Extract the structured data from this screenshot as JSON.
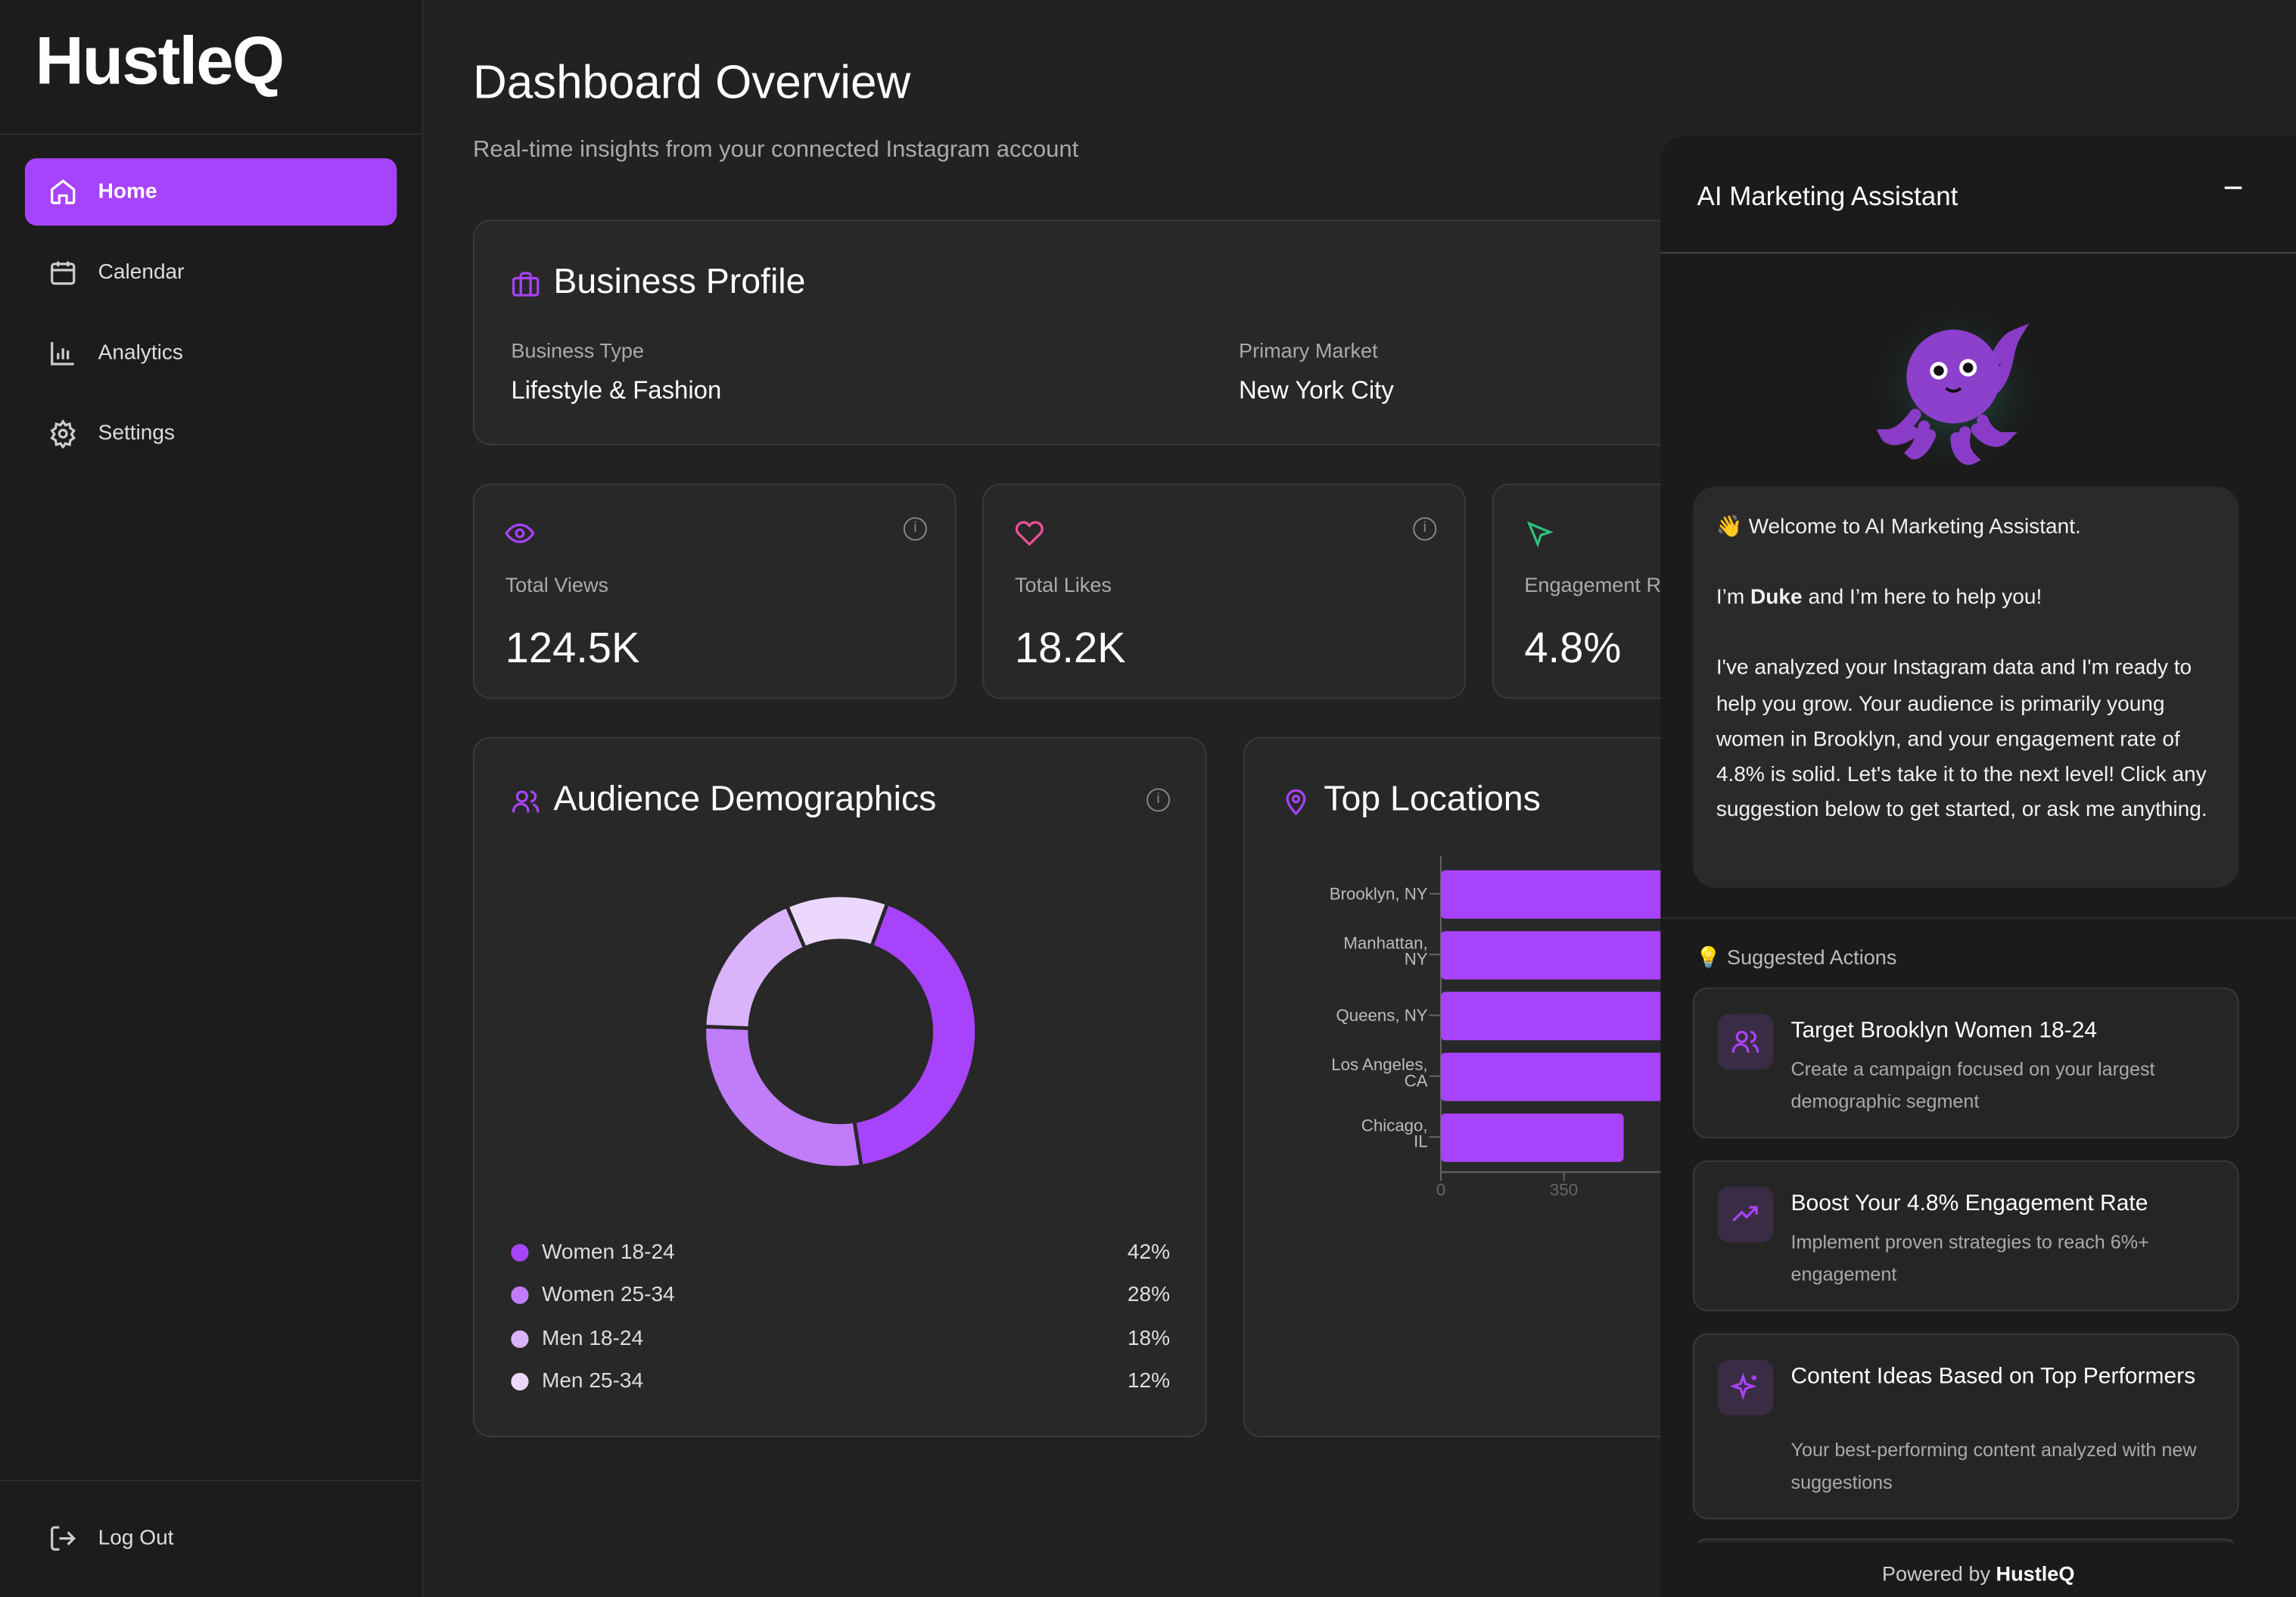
{
  "sidebar": {
    "logo": "HustleQ",
    "items": [
      {
        "label": "Home",
        "icon": "home-icon",
        "active": true
      },
      {
        "label": "Calendar",
        "icon": "calendar-icon"
      },
      {
        "label": "Analytics",
        "icon": "bar-chart-icon"
      },
      {
        "label": "Settings",
        "icon": "gear-icon"
      }
    ],
    "logout": "Log Out"
  },
  "header": {
    "title": "Dashboard Overview",
    "subtitle": "Real-time insights from your connected Instagram account"
  },
  "profile": {
    "title": "Business Profile",
    "business_type_label": "Business Type",
    "business_type": "Lifestyle & Fashion",
    "market_label": "Primary Market",
    "market": "New York City"
  },
  "stats": [
    {
      "label": "Total Views",
      "value": "124.5K",
      "icon": "eye-icon",
      "color": "#a843fc"
    },
    {
      "label": "Total Likes",
      "value": "18.2K",
      "icon": "heart-icon",
      "color": "#f0509a"
    },
    {
      "label": "Engagement R",
      "value": "4.8%",
      "icon": "cursor-icon",
      "color": "#2ec27e"
    }
  ],
  "demographics": {
    "title": "Audience Demographics",
    "segments": [
      {
        "label": "Women 18-24",
        "value": 42,
        "pct": "42%",
        "color": "#a843fc"
      },
      {
        "label": "Women 25-34",
        "value": 28,
        "pct": "28%",
        "color": "#c07cf9"
      },
      {
        "label": "Men 18-24",
        "value": 18,
        "pct": "18%",
        "color": "#dbb3fb"
      },
      {
        "label": "Men 25-34",
        "value": 12,
        "pct": "12%",
        "color": "#ecd8fd"
      }
    ]
  },
  "chart_data": {
    "type": "bar",
    "title": "Top Locations",
    "orientation": "horizontal",
    "categories": [
      "Brooklyn, NY",
      "Manhattan, NY",
      "Queens, NY",
      "Los Angeles, CA",
      "Chicago, IL"
    ],
    "values": [
      1200,
      1000,
      850,
      700,
      520
    ],
    "x_ticks": [
      "0",
      "350"
    ],
    "color": "#a843fc"
  },
  "assistant": {
    "title": "AI Marketing Assistant",
    "minimize": "−",
    "welcome": "Welcome to AI Marketing Assistant.",
    "wave": "👋",
    "intro_pre": "I’m ",
    "intro_name": "Duke",
    "intro_post": " and I’m here to help you!",
    "body": "I've analyzed your Instagram data and I'm ready to help you grow. Your audience is primarily young women in Brooklyn, and your engagement rate of 4.8% is solid. Let's take it to the next level! Click any suggestion below to get started, or ask me anything.",
    "suggested_label": "Suggested Actions",
    "suggestions": [
      {
        "title": "Target Brooklyn Women 18-24",
        "desc": "Create a campaign focused on your largest demographic segment",
        "icon": "users-icon"
      },
      {
        "title": "Boost Your 4.8% Engagement Rate",
        "desc": "Implement proven strategies to reach 6%+ engagement",
        "icon": "trending-up-icon"
      },
      {
        "title": "Content Ideas Based on Top Performers",
        "desc": "Your best-performing content analyzed with new suggestions",
        "icon": "sparkles-icon"
      }
    ],
    "footer_pre": "Powered by ",
    "footer_brand": "HustleQ"
  }
}
